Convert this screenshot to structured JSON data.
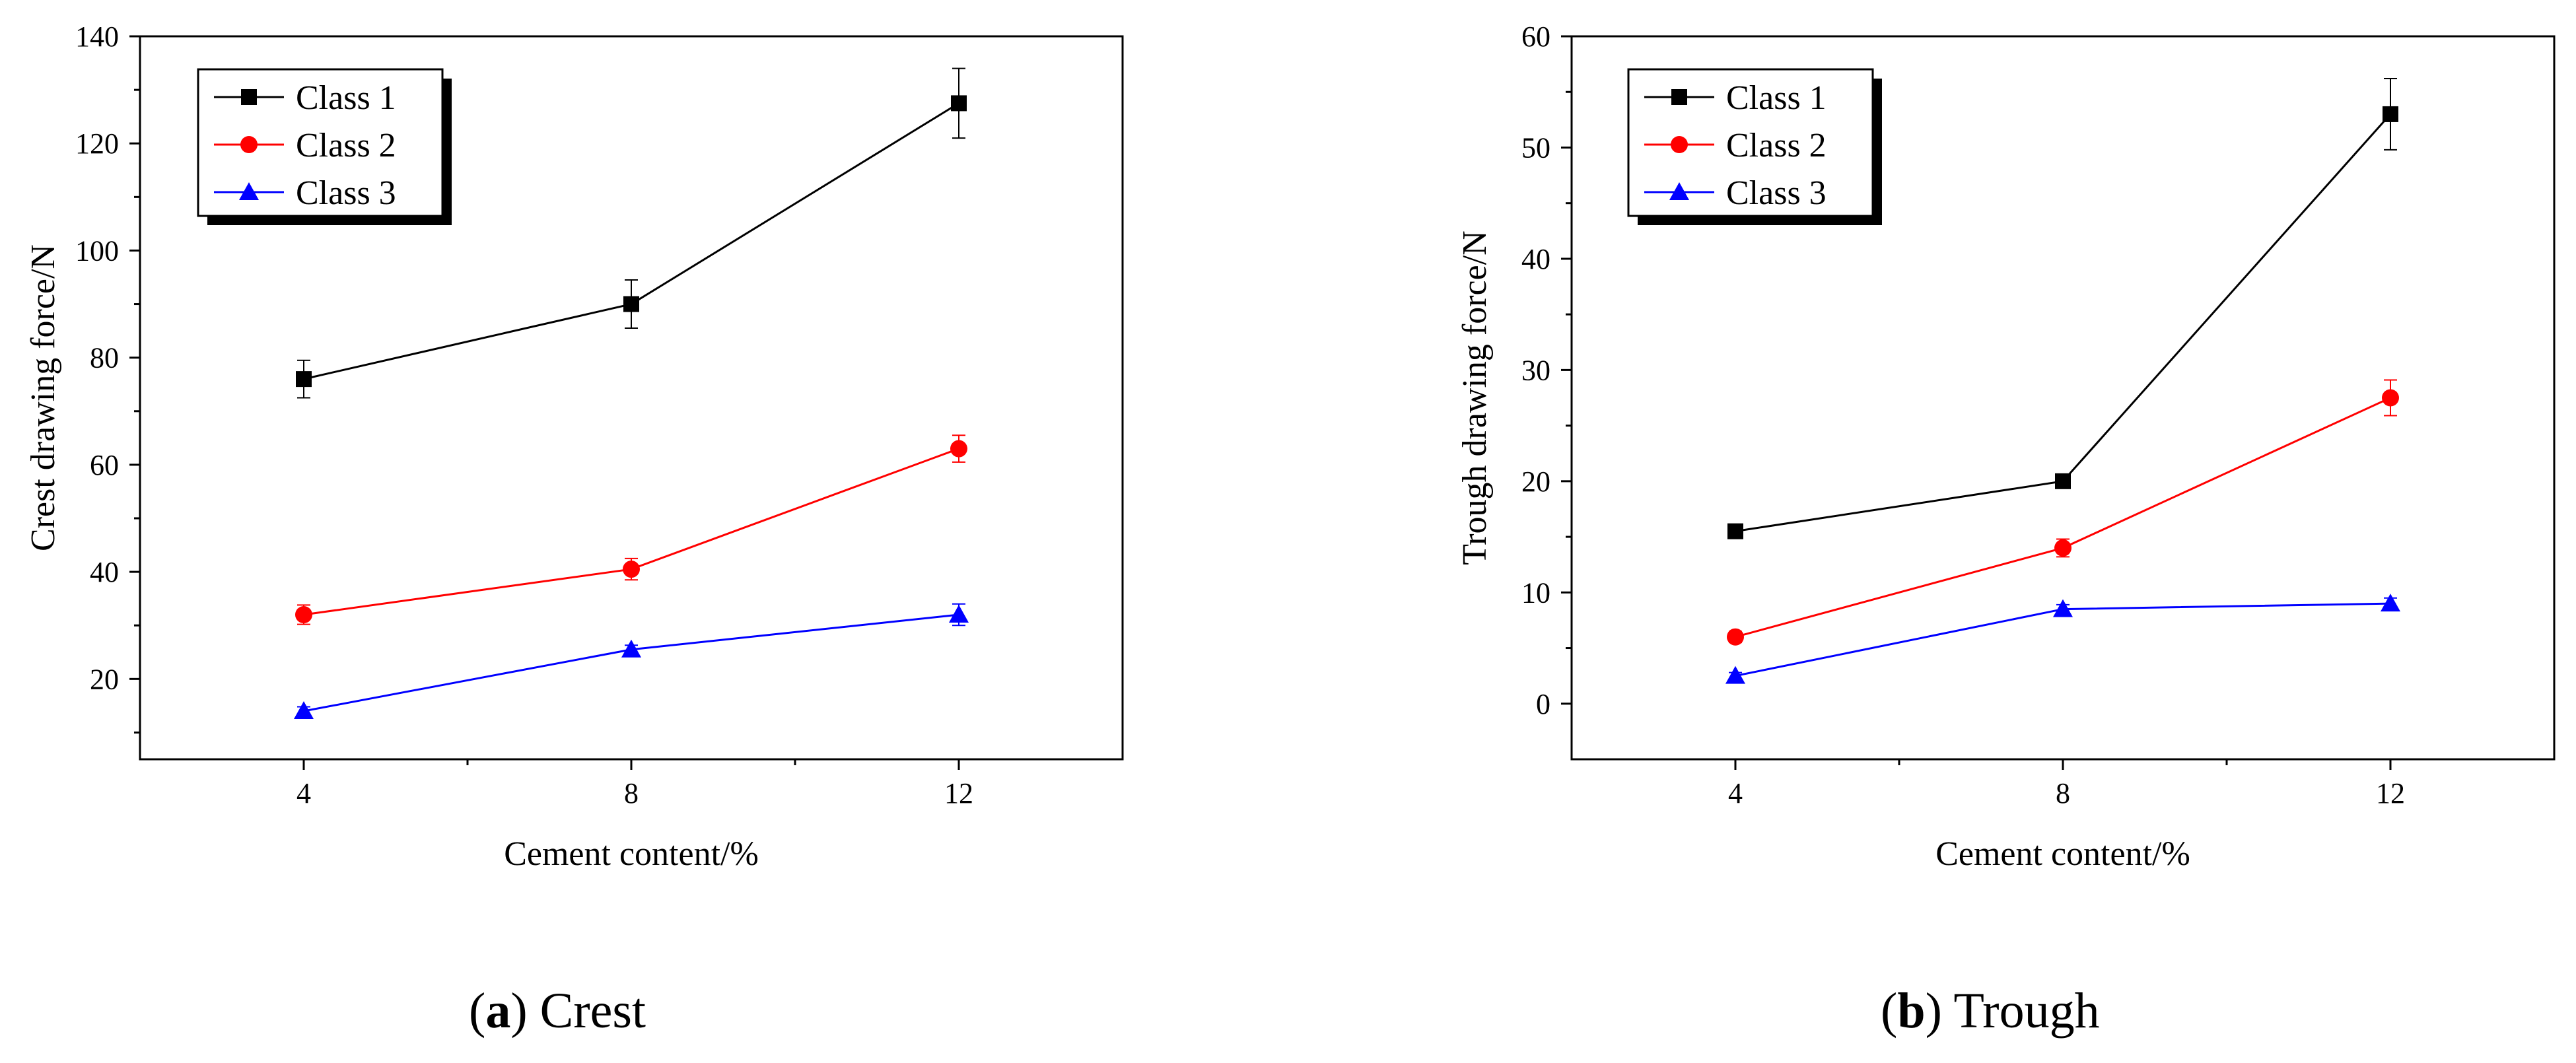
{
  "chart_data": [
    {
      "type": "line",
      "panel": "a",
      "caption_letter": "a",
      "caption_text": "Crest",
      "xlabel": "Cement content/%",
      "ylabel": "Crest drawing force/N",
      "x": [
        4,
        8,
        12
      ],
      "xlim": [
        2,
        14
      ],
      "ylim": [
        5,
        140
      ],
      "xticks": [
        4,
        8,
        12
      ],
      "yticks": [
        20,
        40,
        60,
        80,
        100,
        120,
        140
      ],
      "legend_position": "top-left",
      "series": [
        {
          "name": "Class 1",
          "color": "#000000",
          "marker": "square",
          "values": [
            76,
            90,
            127.5
          ],
          "errors": [
            3.5,
            4.5,
            6.5
          ]
        },
        {
          "name": "Class 2",
          "color": "#ff0000",
          "marker": "circle",
          "values": [
            32,
            40.5,
            63
          ],
          "errors": [
            1.8,
            2.0,
            2.5
          ]
        },
        {
          "name": "Class 3",
          "color": "#0000ff",
          "marker": "triangle",
          "values": [
            14,
            25.5,
            32
          ],
          "errors": [
            0.8,
            0.8,
            2.0
          ]
        }
      ]
    },
    {
      "type": "line",
      "panel": "b",
      "caption_letter": "b",
      "caption_text": "Trough",
      "xlabel": "Cement content/%",
      "ylabel": "Trough drawing force/N",
      "x": [
        4,
        8,
        12
      ],
      "xlim": [
        2,
        14
      ],
      "ylim": [
        -5,
        60
      ],
      "xticks": [
        4,
        8,
        12
      ],
      "yticks": [
        0,
        10,
        20,
        30,
        40,
        50,
        60
      ],
      "legend_position": "top-left",
      "series": [
        {
          "name": "Class 1",
          "color": "#000000",
          "marker": "square",
          "values": [
            15.5,
            20,
            53
          ],
          "errors": [
            0.4,
            0.5,
            3.2
          ]
        },
        {
          "name": "Class 2",
          "color": "#ff0000",
          "marker": "circle",
          "values": [
            6,
            14,
            27.5
          ],
          "errors": [
            0.5,
            0.8,
            1.6
          ]
        },
        {
          "name": "Class 3",
          "color": "#0000ff",
          "marker": "triangle",
          "values": [
            2.5,
            8.5,
            9
          ],
          "errors": [
            0.3,
            0.4,
            0.5
          ]
        }
      ]
    }
  ]
}
